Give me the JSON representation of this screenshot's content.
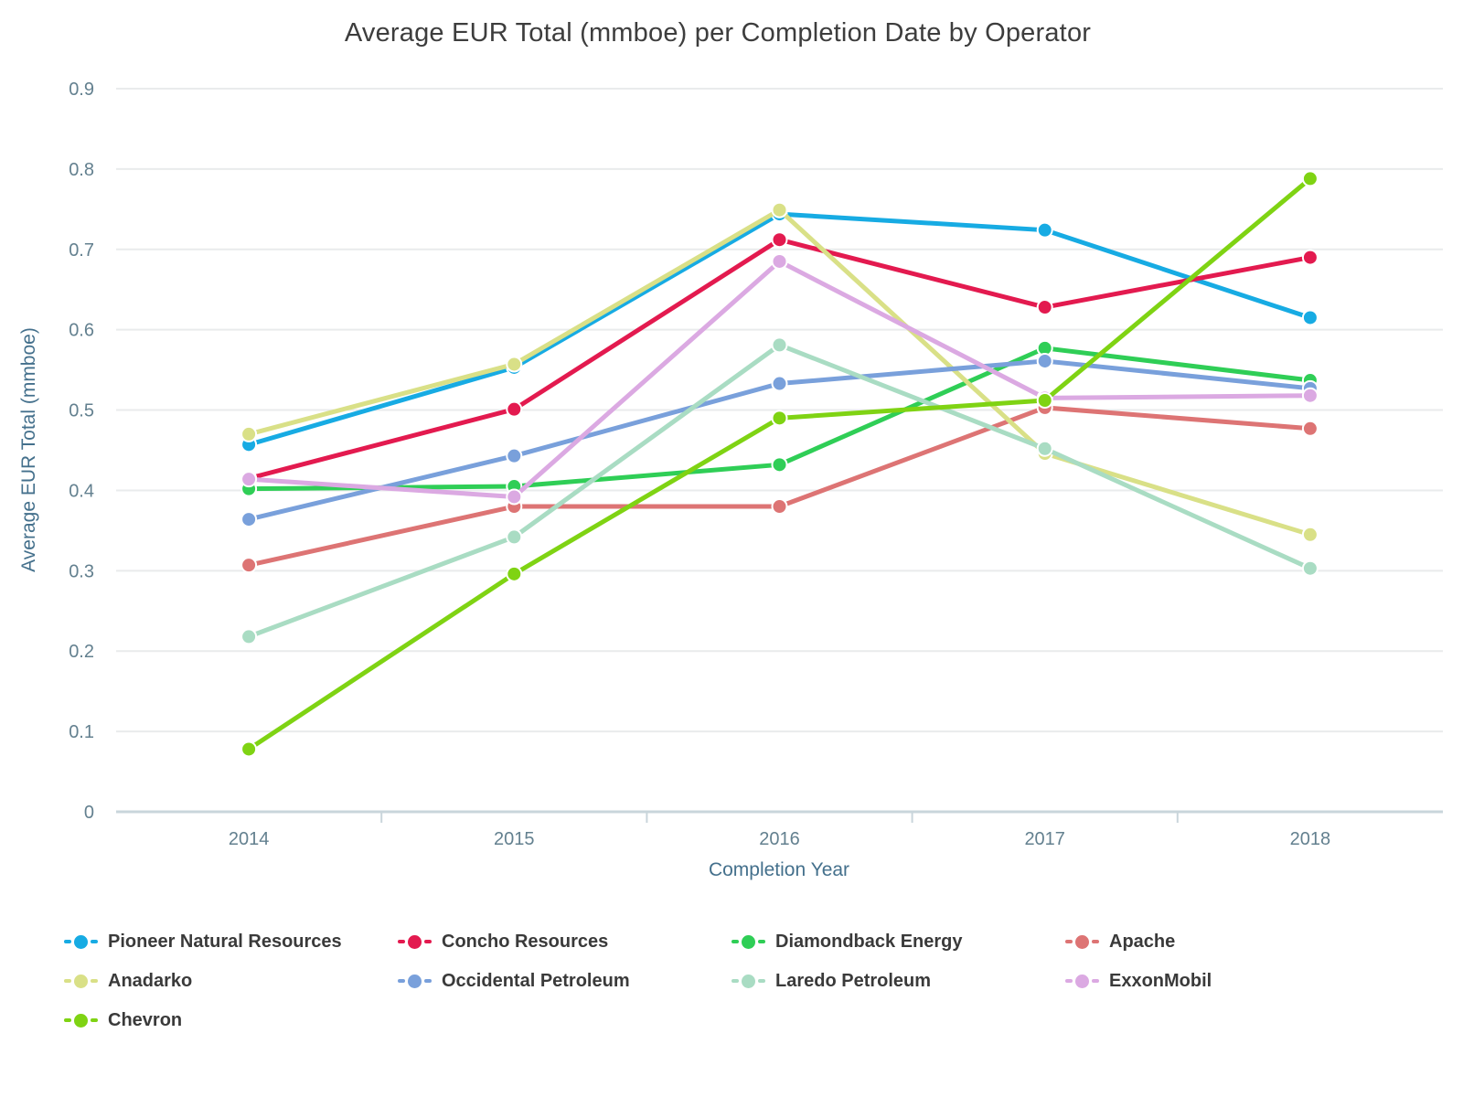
{
  "chart_data": {
    "type": "line",
    "title": "Average EUR Total (mmboe) per Completion Date by Operator",
    "xlabel": "Completion Year",
    "ylabel": "Average EUR Total (mmboe)",
    "x": [
      "2014",
      "2015",
      "2016",
      "2017",
      "2018"
    ],
    "ylim": [
      0,
      0.9
    ],
    "ytick_step": 0.1,
    "grid": true,
    "legend_position": "bottom",
    "series": [
      {
        "name": "Pioneer Natural Resources",
        "color": "#17ABE3",
        "values": [
          0.457,
          0.553,
          0.744,
          0.724,
          0.615
        ]
      },
      {
        "name": "Concho Resources",
        "color": "#E31A4F",
        "values": [
          0.415,
          0.501,
          0.712,
          0.628,
          0.69
        ]
      },
      {
        "name": "Diamondback Energy",
        "color": "#2FCE56",
        "values": [
          0.402,
          0.405,
          0.432,
          0.577,
          0.537
        ]
      },
      {
        "name": "Apache",
        "color": "#DD7474",
        "values": [
          0.307,
          0.38,
          0.38,
          0.503,
          0.477
        ]
      },
      {
        "name": "Anadarko",
        "color": "#D9E087",
        "values": [
          0.47,
          0.557,
          0.749,
          0.446,
          0.345
        ]
      },
      {
        "name": "Occidental Petroleum",
        "color": "#79A0DB",
        "values": [
          0.364,
          0.443,
          0.533,
          0.561,
          0.527
        ]
      },
      {
        "name": "Laredo Petroleum",
        "color": "#A9DCC3",
        "values": [
          0.218,
          0.342,
          0.581,
          0.452,
          0.303
        ]
      },
      {
        "name": "ExxonMobil",
        "color": "#DBA9E2",
        "values": [
          0.414,
          0.392,
          0.685,
          0.515,
          0.518
        ]
      },
      {
        "name": "Chevron",
        "color": "#7FD313",
        "values": [
          0.078,
          0.296,
          0.49,
          0.512,
          0.788
        ]
      }
    ],
    "axis_colors": {
      "gridline": "#e9ebec",
      "zeroline": "#c9d5db",
      "tick_label": "#63808f",
      "axis_title": "#44708c",
      "title": "#3d3d3d"
    }
  }
}
